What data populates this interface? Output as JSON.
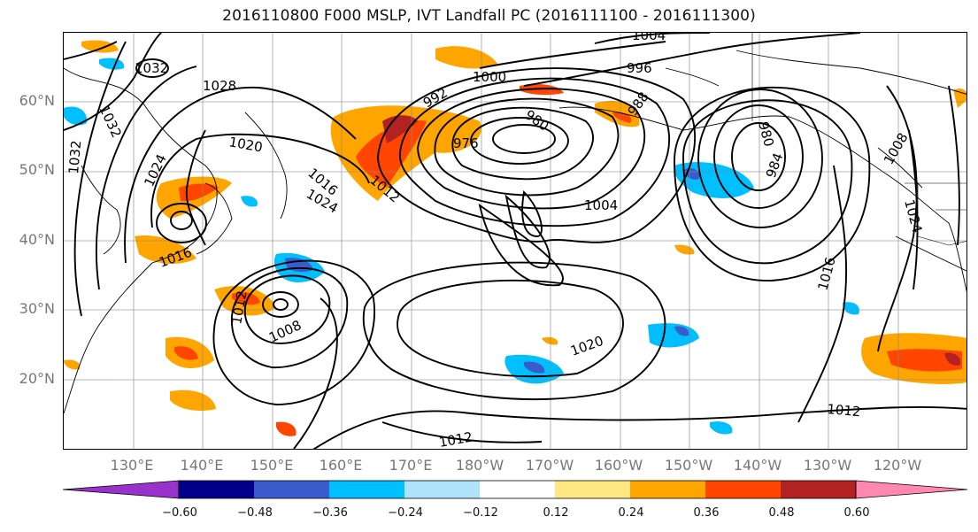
{
  "title": "2016110800 F000 MSLP, IVT Landfall PC (2016111100 - 2016111300)",
  "lat_labels": [
    "60°N",
    "50°N",
    "40°N",
    "30°N",
    "20°N"
  ],
  "lon_labels": [
    "130°E",
    "140°E",
    "150°E",
    "160°E",
    "170°E",
    "180°W",
    "170°W",
    "160°W",
    "150°W",
    "140°W",
    "130°W",
    "120°W"
  ],
  "colorbar": {
    "ticks": [
      "−0.60",
      "−0.48",
      "−0.36",
      "−0.24",
      "−0.12",
      "0.12",
      "0.24",
      "0.36",
      "0.48",
      "0.60"
    ],
    "colors": [
      "#9932cc",
      "#00008b",
      "#3a5bcc",
      "#00bfff",
      "#aee3fb",
      "#ffffff",
      "#ffe882",
      "#ffa500",
      "#ff4500",
      "#b22222",
      "#ff88b0"
    ]
  },
  "contour_labels": [
    "1004",
    "1032",
    "996",
    "1028",
    "1000",
    "992",
    "980",
    "988",
    "1032",
    "976",
    "1020",
    "980",
    "1008",
    "1032",
    "1024",
    "984",
    "1016",
    "1012",
    "1024",
    "1004",
    "1024",
    "1016",
    "1016",
    "1012",
    "1008",
    "1020",
    "1012",
    "1012"
  ]
}
